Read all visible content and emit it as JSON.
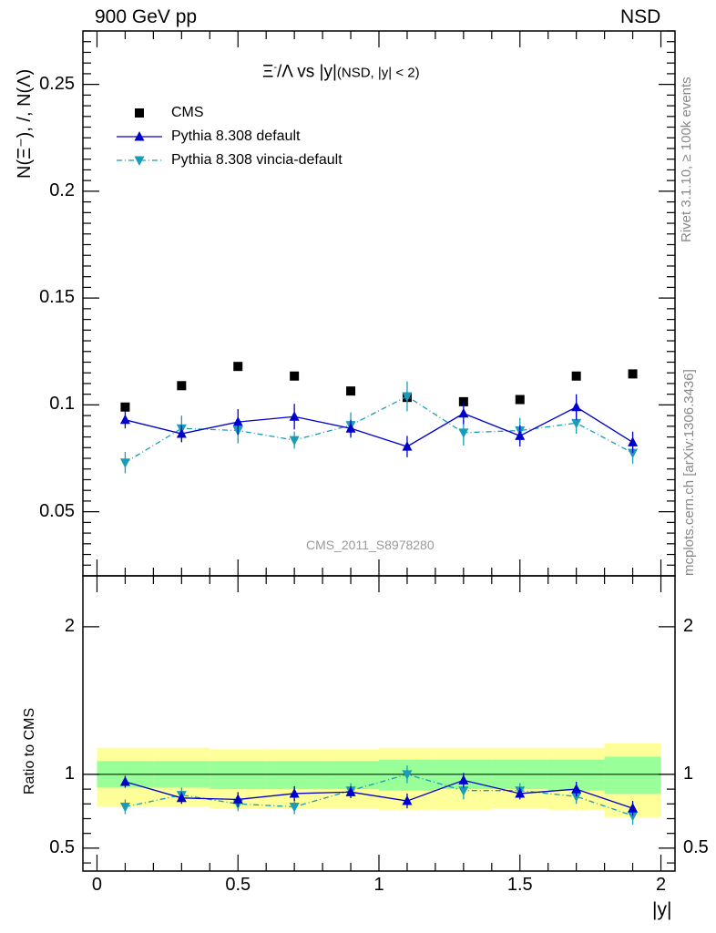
{
  "header": {
    "left": "900 GeV pp",
    "right": "NSD"
  },
  "side": {
    "rivet": "Rivet 3.1.10, ≥ 100k events",
    "mcplots": "mcplots.cern.ch [arXiv:1306.3436]"
  },
  "title": {
    "main_prefix": "Ξ",
    "main_sup": "-",
    "main_rest": "/Λ vs |y|",
    "sub": "(NSD, |y| < 2)"
  },
  "watermark": "CMS_2011_S8978280",
  "legend": {
    "cms": "CMS",
    "default": "Pythia 8.308 default",
    "vincia": "Pythia 8.308 vincia-default"
  },
  "colors": {
    "data": "#000000",
    "default": "#0000cc",
    "vincia": "#1a9bb8",
    "band_outer": "#ffff99",
    "band_inner": "#99ff99"
  },
  "chart_data": [
    {
      "type": "scatter",
      "ylabel": "N(Ξ⁻), /, N(Λ)",
      "xlabel": "|y|",
      "xlim": [
        -0.05,
        2.05
      ],
      "ylim": [
        0.02,
        0.275
      ],
      "yticks": [
        0.05,
        0.1,
        0.15,
        0.2,
        0.25
      ],
      "ytick_labels": [
        "0.05",
        "0.1",
        "0.15",
        "0.2",
        "0.25"
      ],
      "x": [
        0.1,
        0.3,
        0.5,
        0.7,
        0.9,
        1.1,
        1.3,
        1.5,
        1.7,
        1.9
      ],
      "series": [
        {
          "name": "CMS",
          "values": [
            0.099,
            0.109,
            0.118,
            0.1135,
            0.1065,
            0.1035,
            0.1015,
            0.1025,
            0.1135,
            0.1145
          ]
        },
        {
          "name": "Pythia 8.308 default",
          "values": [
            0.093,
            0.0865,
            0.092,
            0.0945,
            0.089,
            0.0805,
            0.096,
            0.0855,
            0.099,
            0.0825
          ],
          "errors": [
            0.004,
            0.004,
            0.006,
            0.006,
            0.004,
            0.005,
            0.005,
            0.005,
            0.006,
            0.005
          ]
        },
        {
          "name": "Pythia 8.308 vincia-default",
          "values": [
            0.073,
            0.089,
            0.088,
            0.0835,
            0.0905,
            0.104,
            0.087,
            0.088,
            0.0915,
            0.0775
          ],
          "errors": [
            0.005,
            0.006,
            0.006,
            0.004,
            0.006,
            0.007,
            0.006,
            0.006,
            0.005,
            0.005
          ]
        }
      ]
    },
    {
      "type": "scatter",
      "ylabel": "Ratio to CMS",
      "xlabel": "|y|",
      "xlim": [
        -0.05,
        2.05
      ],
      "ylim": [
        0.345,
        2.345
      ],
      "yticks": [
        0.5,
        1,
        2
      ],
      "ytick_labels": [
        "0.5",
        "1",
        "2"
      ],
      "xticks": [
        0,
        0.5,
        1,
        1.5,
        2
      ],
      "xtick_labels": [
        "0",
        "0.5",
        "1",
        "1.5",
        "2"
      ],
      "x": [
        0.1,
        0.3,
        0.5,
        0.7,
        0.9,
        1.1,
        1.3,
        1.5,
        1.7,
        1.9
      ],
      "band_edges": [
        0.0,
        0.2,
        0.4,
        0.6,
        0.8,
        1.0,
        1.2,
        1.4,
        1.6,
        1.8,
        2.0
      ],
      "band_outer": [
        [
          0.78,
          1.18
        ],
        [
          0.78,
          1.18
        ],
        [
          0.77,
          1.17
        ],
        [
          0.77,
          1.17
        ],
        [
          0.77,
          1.17
        ],
        [
          0.76,
          1.18
        ],
        [
          0.76,
          1.18
        ],
        [
          0.77,
          1.18
        ],
        [
          0.76,
          1.18
        ],
        [
          0.71,
          1.21
        ]
      ],
      "band_inner": [
        [
          0.91,
          1.09
        ],
        [
          0.91,
          1.09
        ],
        [
          0.9,
          1.09
        ],
        [
          0.9,
          1.09
        ],
        [
          0.9,
          1.09
        ],
        [
          0.89,
          1.1
        ],
        [
          0.9,
          1.1
        ],
        [
          0.9,
          1.1
        ],
        [
          0.89,
          1.1
        ],
        [
          0.87,
          1.12
        ]
      ],
      "series": [
        {
          "name": "Pythia 8.308 default",
          "values": [
            0.95,
            0.84,
            0.83,
            0.87,
            0.88,
            0.82,
            0.96,
            0.87,
            0.9,
            0.77
          ],
          "errors": [
            0.04,
            0.04,
            0.05,
            0.05,
            0.04,
            0.05,
            0.05,
            0.04,
            0.05,
            0.05
          ]
        },
        {
          "name": "Pythia 8.308 vincia-default",
          "values": [
            0.78,
            0.86,
            0.8,
            0.78,
            0.89,
            1.0,
            0.89,
            0.89,
            0.85,
            0.72
          ],
          "errors": [
            0.05,
            0.05,
            0.05,
            0.05,
            0.05,
            0.06,
            0.06,
            0.05,
            0.05,
            0.06
          ]
        }
      ]
    }
  ]
}
